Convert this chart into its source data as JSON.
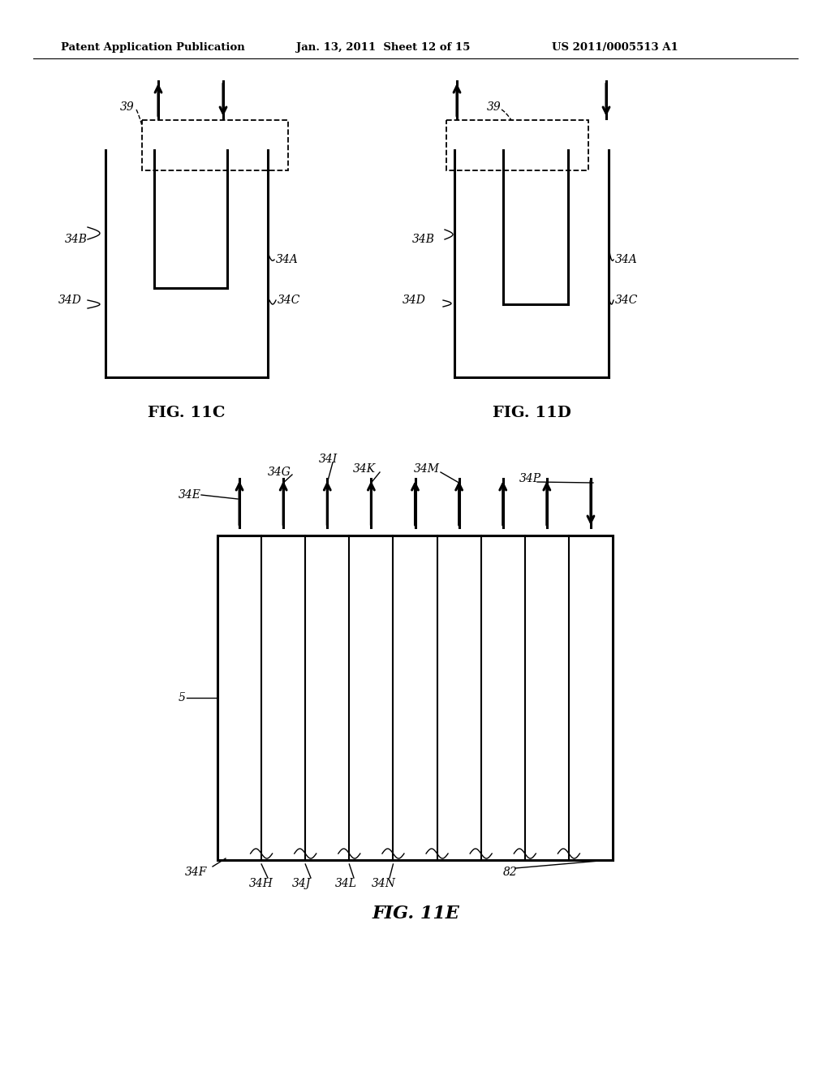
{
  "bg_color": "#ffffff",
  "header_text": "Patent Application Publication",
  "header_date": "Jan. 13, 2011  Sheet 12 of 15",
  "header_patent": "US 2011/0005513 A1",
  "fig11c_title": "FIG. 11C",
  "fig11d_title": "FIG. 11D",
  "fig11e_title": "FIG. 11E",
  "lw_thick": 2.2,
  "lw_medium": 1.5,
  "lw_thin": 1.0,
  "lw_dashed": 1.3,
  "fontsize_label": 10,
  "fontsize_title": 14
}
